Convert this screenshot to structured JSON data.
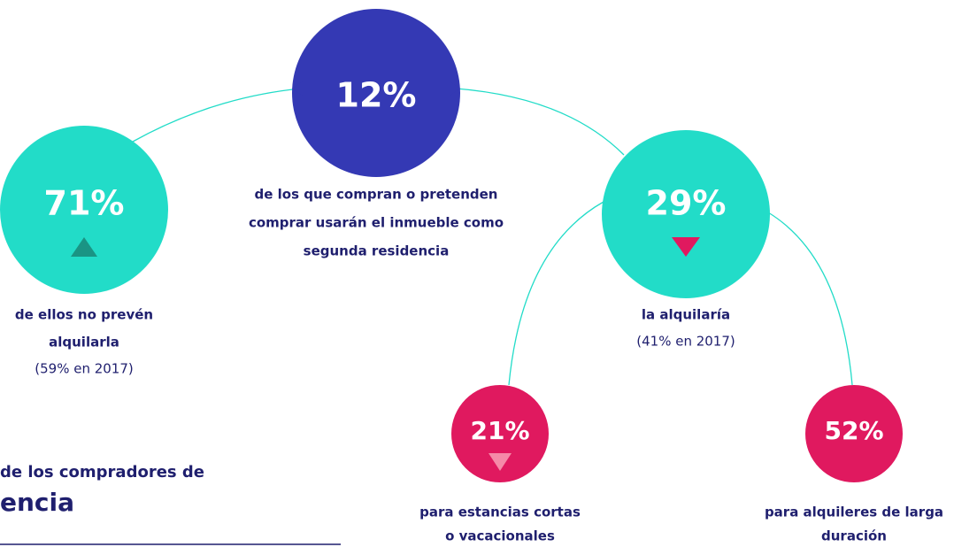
{
  "nodes": [
    {
      "value": "12%",
      "caption": [
        "de los que compran o pretenden",
        "comprar usarán el inmueble como",
        "segunda residencia"
      ]
    },
    {
      "value": "71%",
      "caption": [
        "de ellos no prevén",
        "alquilarla",
        "(59% en 2017)"
      ]
    },
    {
      "value": "29%",
      "caption": [
        "la alquilaría",
        "(41% en 2017)"
      ]
    },
    {
      "value": "21%",
      "caption": [
        "para estancias cortas",
        "o vacacionales"
      ]
    },
    {
      "value": "52%",
      "caption": [
        "para alquileres de larga",
        "duración"
      ]
    }
  ],
  "heading": {
    "line1": "de los compradores de",
    "line2": "encia"
  }
}
